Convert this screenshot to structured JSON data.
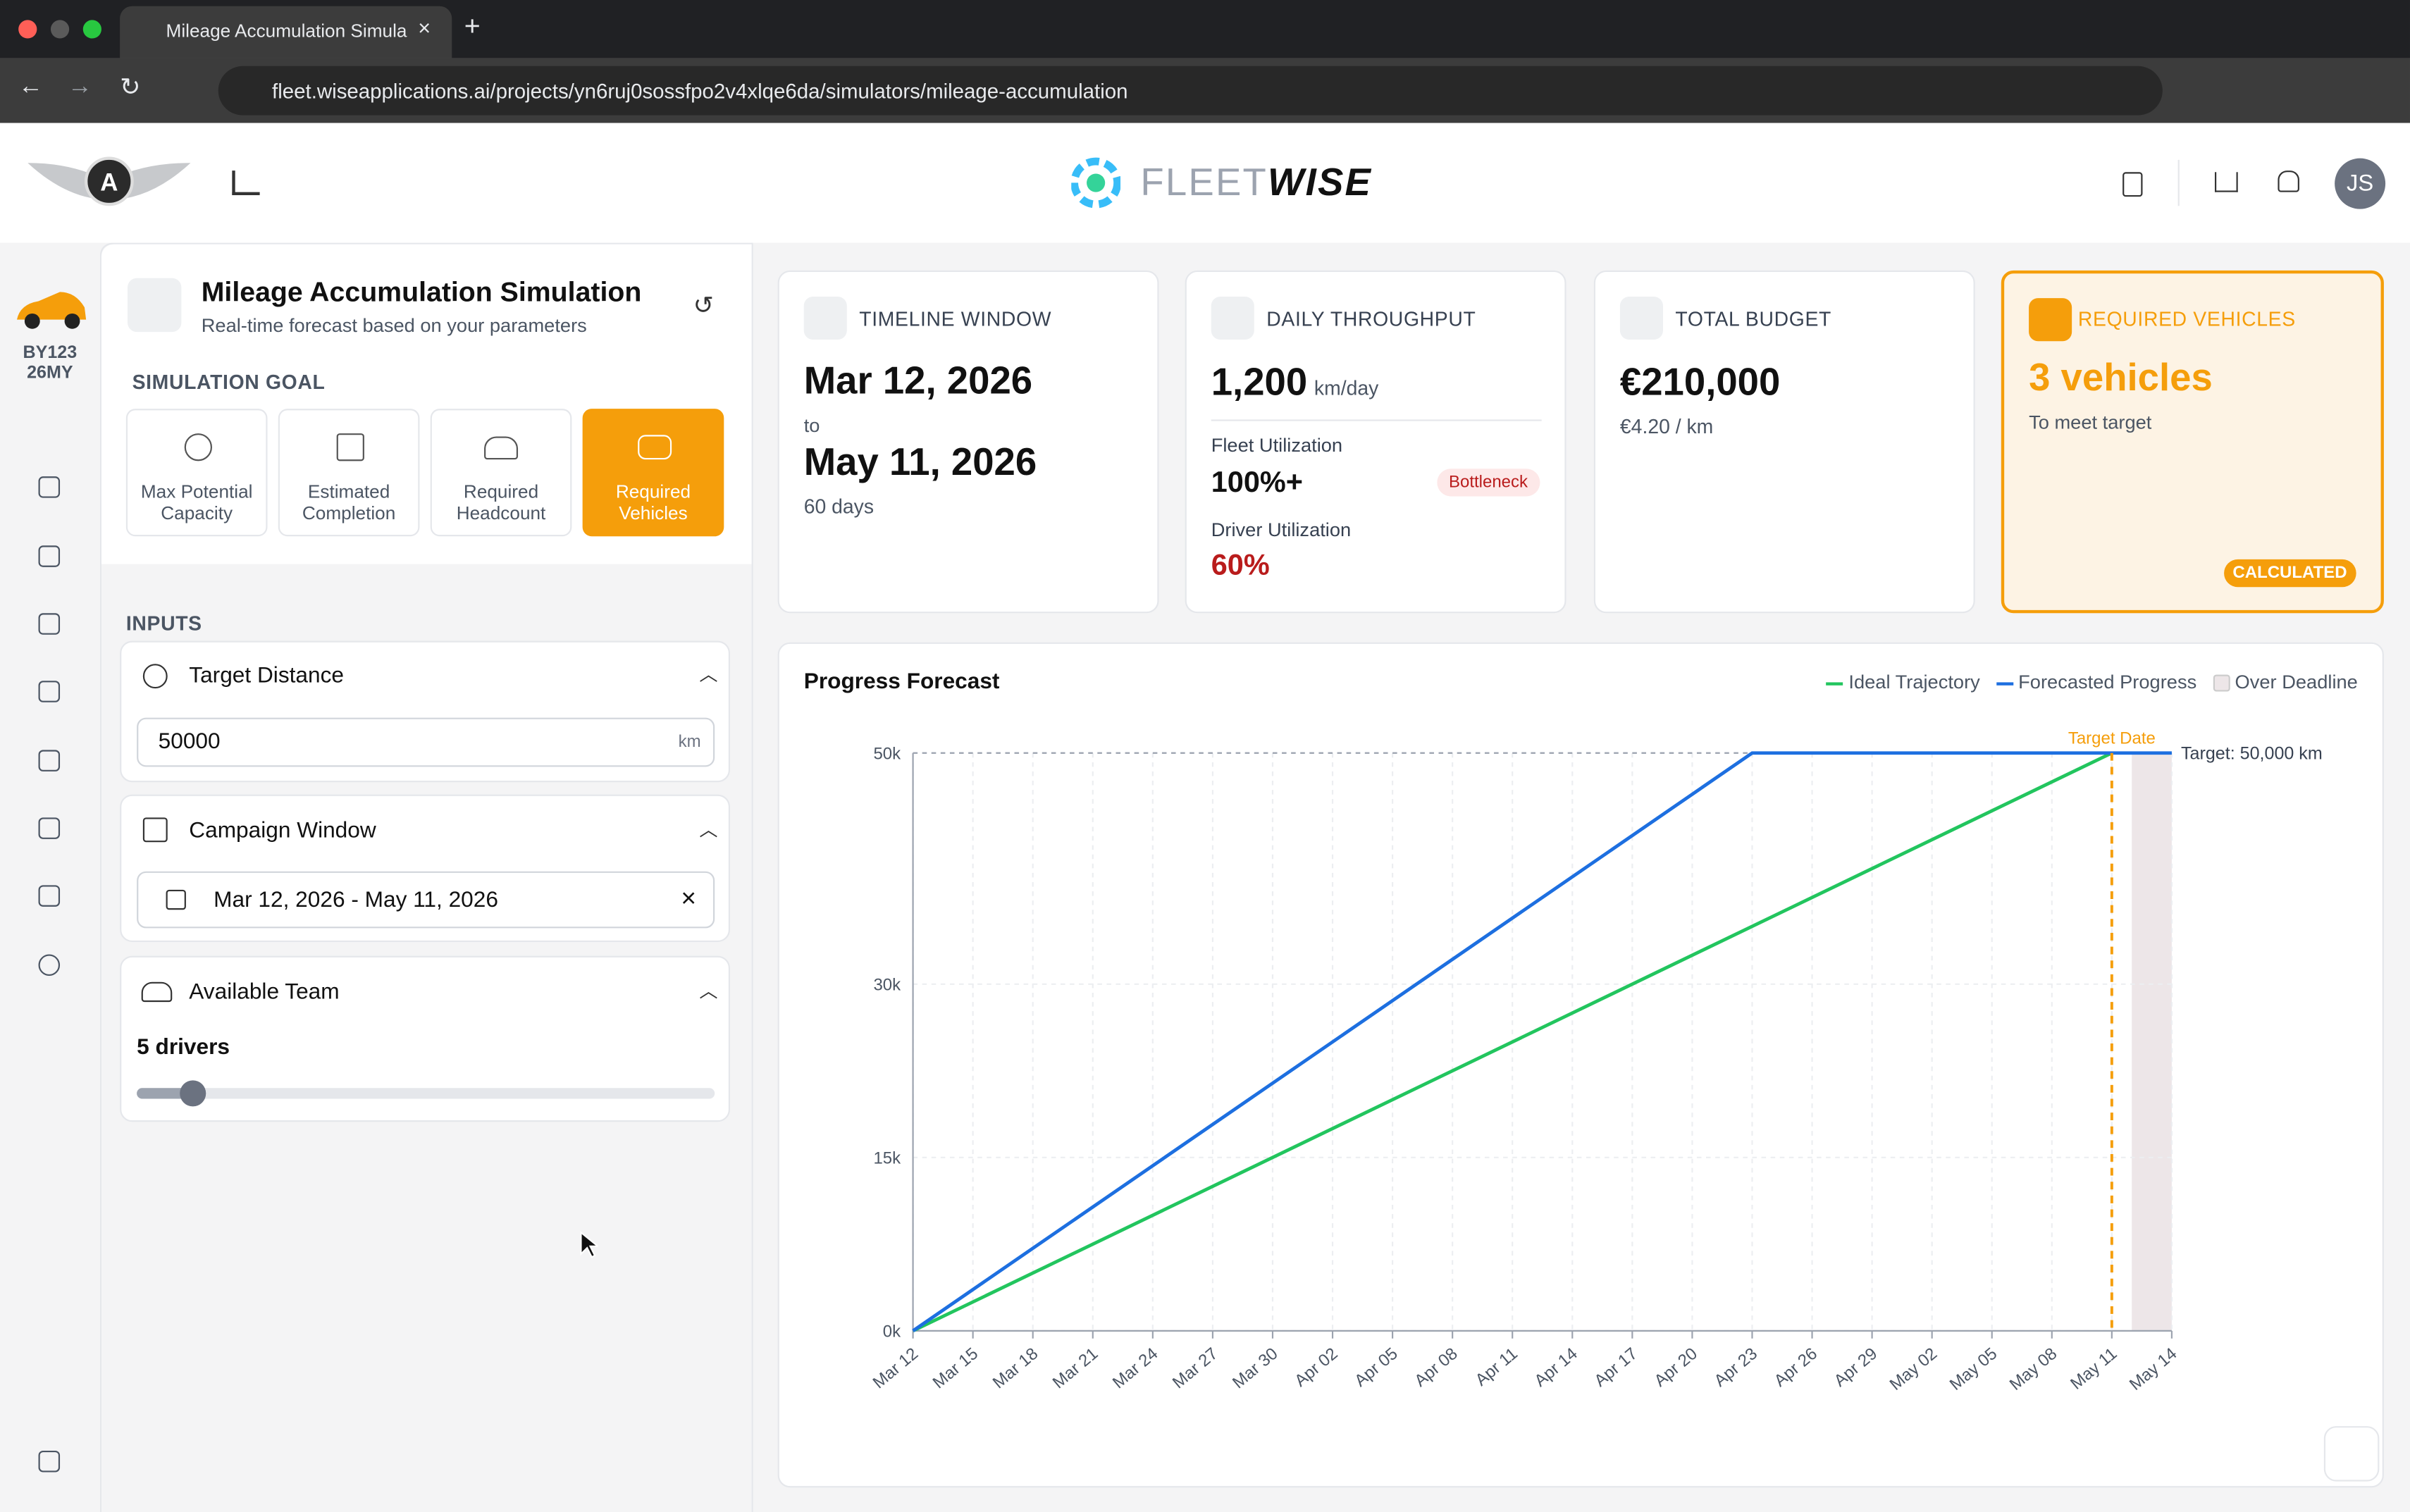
{
  "browser": {
    "tab_title": "Mileage Accumulation Simula",
    "url": "fleet.wiseapplications.ai/projects/yn6ruj0sossfpo2v4xlqe6da/simulators/mileage-accumulation"
  },
  "header": {
    "logo_light": "FLEET",
    "logo_bold": "WISE",
    "avatar": "JS"
  },
  "vehicle": {
    "line1": "BY123",
    "line2": "26MY"
  },
  "panel": {
    "title": "Mileage Accumulation Simulation",
    "subtitle": "Real-time forecast based on your parameters",
    "goal_label": "SIMULATION GOAL",
    "goals": [
      "Max Potential Capacity",
      "Estimated Completion",
      "Required Headcount",
      "Required Vehicles"
    ],
    "inputs_label": "INPUTS",
    "target": {
      "label": "Target Distance",
      "value": "50000",
      "unit": "km"
    },
    "campaign": {
      "label": "Campaign Window",
      "value": "Mar 12, 2026 - May 11, 2026"
    },
    "team": {
      "label": "Available Team",
      "value": "5 drivers"
    }
  },
  "cards": {
    "timeline": {
      "label": "TIMELINE WINDOW",
      "start": "Mar 12, 2026",
      "to": "to",
      "end": "May 11, 2026",
      "duration": "60 days"
    },
    "throughput": {
      "label": "DAILY THROUGHPUT",
      "value": "1,200",
      "unit": "km/day",
      "fleet_label": "Fleet Utilization",
      "fleet_value": "100%+",
      "badge": "Bottleneck",
      "driver_label": "Driver Utilization",
      "driver_value": "60%"
    },
    "budget": {
      "label": "TOTAL BUDGET",
      "value": "€210,000",
      "rate": "€4.20 / km"
    },
    "vehicles": {
      "label": "REQUIRED VEHICLES",
      "value": "3 vehicles",
      "note": "To meet target",
      "badge": "CALCULATED"
    }
  },
  "chart_data": {
    "type": "line",
    "title": "Progress Forecast",
    "xlim": [
      0,
      63
    ],
    "xticks": [
      {
        "value": 0,
        "label": "Mar 12"
      },
      {
        "value": 3,
        "label": "Mar 15"
      },
      {
        "value": 6,
        "label": "Mar 18"
      },
      {
        "value": 9,
        "label": "Mar 21"
      },
      {
        "value": 12,
        "label": "Mar 24"
      },
      {
        "value": 15,
        "label": "Mar 27"
      },
      {
        "value": 18,
        "label": "Mar 30"
      },
      {
        "value": 21,
        "label": "Apr 02"
      },
      {
        "value": 24,
        "label": "Apr 05"
      },
      {
        "value": 27,
        "label": "Apr 08"
      },
      {
        "value": 30,
        "label": "Apr 11"
      },
      {
        "value": 33,
        "label": "Apr 14"
      },
      {
        "value": 36,
        "label": "Apr 17"
      },
      {
        "value": 39,
        "label": "Apr 20"
      },
      {
        "value": 42,
        "label": "Apr 23"
      },
      {
        "value": 45,
        "label": "Apr 26"
      },
      {
        "value": 48,
        "label": "Apr 29"
      },
      {
        "value": 51,
        "label": "May 02"
      },
      {
        "value": 54,
        "label": "May 05"
      },
      {
        "value": 57,
        "label": "May 08"
      },
      {
        "value": 60,
        "label": "May 11"
      },
      {
        "value": 63,
        "label": "May 14"
      }
    ],
    "ylim": [
      0,
      50000
    ],
    "yticks": [
      {
        "value": 0,
        "label": "0k"
      },
      {
        "value": 15000,
        "label": "15k"
      },
      {
        "value": 30000,
        "label": "30k"
      },
      {
        "value": 50000,
        "label": "50k"
      }
    ],
    "grid": true,
    "series": [
      {
        "name": "Ideal Trajectory",
        "color": "#22c55e",
        "x": [
          0,
          60
        ],
        "values": [
          0,
          50000
        ]
      },
      {
        "name": "Forecasted Progress",
        "color": "#1d6fe0",
        "x": [
          0,
          42,
          63
        ],
        "values": [
          0,
          50000,
          50000
        ]
      }
    ],
    "region": {
      "name": "Over Deadline",
      "color": "#ede6e8",
      "x": [
        61,
        63
      ]
    },
    "target_date": {
      "label": "Target Date",
      "x": 60,
      "color": "#f59e0b"
    },
    "target_line": {
      "label": "Target: 50,000 km",
      "y": 50000
    }
  }
}
